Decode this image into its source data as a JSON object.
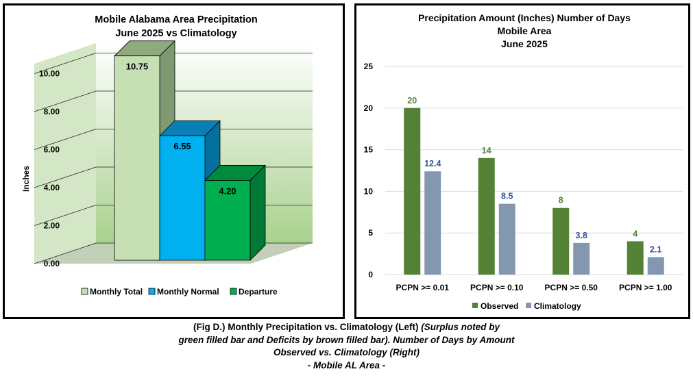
{
  "left_chart": {
    "title_line1": "Mobile Alabama Area Precipitation",
    "title_line2": "June 2025 vs Climatology",
    "ylabel": "Inches",
    "y_ticks": [
      "0.00",
      "2.00",
      "4.00",
      "6.00",
      "8.00",
      "10.00"
    ],
    "legend": [
      "Monthly Total",
      "Monthly Normal",
      "Departure"
    ],
    "colors": {
      "total_front": "#c6e0b4",
      "total_top": "#8faa7c",
      "total_side": "#7f9970",
      "normal_front": "#00b0f0",
      "normal_top": "#0a7fb5",
      "normal_side": "#0470a0",
      "departure_front": "#00b050",
      "departure_top": "#008a3c",
      "departure_side": "#007a36"
    }
  },
  "right_chart": {
    "title_line1": "Precipitation Amount (Inches) Number of Days",
    "title_line2": "Mobile Area",
    "title_line3": "June 2025",
    "legend": [
      "Observed",
      "Climatology"
    ],
    "colors": {
      "observed": "#548235",
      "climatology": "#8497b0",
      "observed_label": "#548235",
      "climatology_label": "#2f5597"
    }
  },
  "chart_data": [
    {
      "type": "bar",
      "title": "Mobile Alabama Area Precipitation June 2025 vs Climatology",
      "xlabel": "",
      "ylabel": "Inches",
      "ylim": [
        0,
        10
      ],
      "categories": [
        "Monthly Total",
        "Monthly Normal",
        "Departure"
      ],
      "values": [
        10.75,
        6.55,
        4.2
      ],
      "value_labels": [
        "10.75",
        "6.55",
        "4.20"
      ],
      "style": "3d-bar",
      "grid": true
    },
    {
      "type": "bar",
      "title": "Precipitation Amount (Inches) Number of Days Mobile Area June 2025",
      "xlabel": "",
      "ylabel": "",
      "ylim": [
        0,
        25
      ],
      "y_ticks": [
        "0",
        "5",
        "10",
        "15",
        "20",
        "25"
      ],
      "categories": [
        "PCPN >= 0.01",
        "PCPN >= 0.10",
        "PCPN >= 0.50",
        "PCPN >= 1.00"
      ],
      "series": [
        {
          "name": "Observed",
          "values": [
            20,
            14,
            8,
            4
          ],
          "labels": [
            "20",
            "14",
            "8",
            "4"
          ]
        },
        {
          "name": "Climatology",
          "values": [
            12.4,
            8.5,
            3.8,
            2.1
          ],
          "labels": [
            "12.4",
            "8.5",
            "3.8",
            "2.1"
          ]
        }
      ],
      "legend_position": "bottom",
      "grid": true
    }
  ],
  "caption": {
    "line1_bold": "(Fig D.) Monthly Precipitation vs. Climatology (Left) ",
    "line1_italic": "(Surplus noted by",
    "line2": "green filled bar and Deficits by brown filled bar). Number of Days by Amount",
    "line3": "Observed vs. Climatology (Right)",
    "line4": "- Mobile AL Area -"
  }
}
